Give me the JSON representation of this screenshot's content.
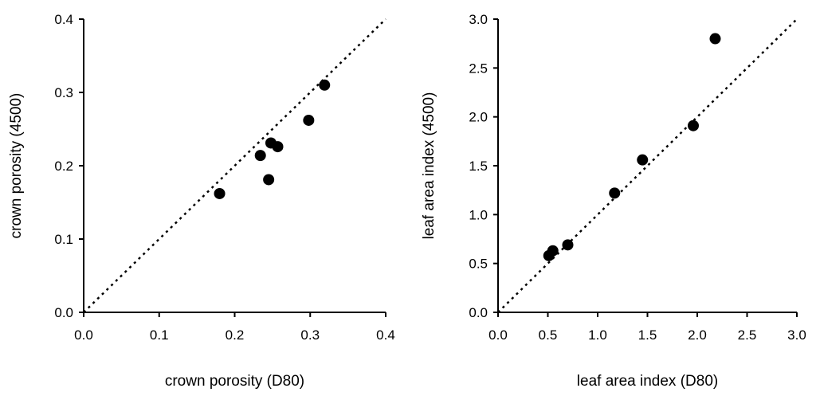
{
  "chart_data": [
    {
      "type": "scatter",
      "name": "crown-porosity",
      "xlabel": "crown porosity (D80)",
      "ylabel": "crown porosity (4500)",
      "xlim": [
        0.0,
        0.4
      ],
      "ylim": [
        0.0,
        0.4
      ],
      "xticks": [
        "0.0",
        "0.1",
        "0.2",
        "0.3",
        "0.4"
      ],
      "yticks": [
        "0.0",
        "0.1",
        "0.2",
        "0.3",
        "0.4"
      ],
      "reference_line": "1:1 dotted",
      "points": [
        {
          "x": 0.18,
          "y": 0.162
        },
        {
          "x": 0.234,
          "y": 0.214
        },
        {
          "x": 0.245,
          "y": 0.181
        },
        {
          "x": 0.248,
          "y": 0.231
        },
        {
          "x": 0.257,
          "y": 0.226
        },
        {
          "x": 0.298,
          "y": 0.262
        },
        {
          "x": 0.319,
          "y": 0.31
        }
      ]
    },
    {
      "type": "scatter",
      "name": "leaf-area-index",
      "xlabel": "leaf area index (D80)",
      "ylabel": "leaf area index (4500)",
      "xlim": [
        0.0,
        3.0
      ],
      "ylim": [
        0.0,
        3.0
      ],
      "xticks": [
        "0.0",
        "0.5",
        "1.0",
        "1.5",
        "2.0",
        "2.5",
        "3.0"
      ],
      "yticks": [
        "0.0",
        "0.5",
        "1.0",
        "1.5",
        "2.0",
        "2.5",
        "3.0"
      ],
      "reference_line": "1:1 dotted",
      "points": [
        {
          "x": 0.51,
          "y": 0.58
        },
        {
          "x": 0.55,
          "y": 0.63
        },
        {
          "x": 0.7,
          "y": 0.69
        },
        {
          "x": 1.17,
          "y": 1.22
        },
        {
          "x": 1.45,
          "y": 1.56
        },
        {
          "x": 1.96,
          "y": 1.91
        },
        {
          "x": 2.18,
          "y": 2.8
        }
      ]
    }
  ]
}
